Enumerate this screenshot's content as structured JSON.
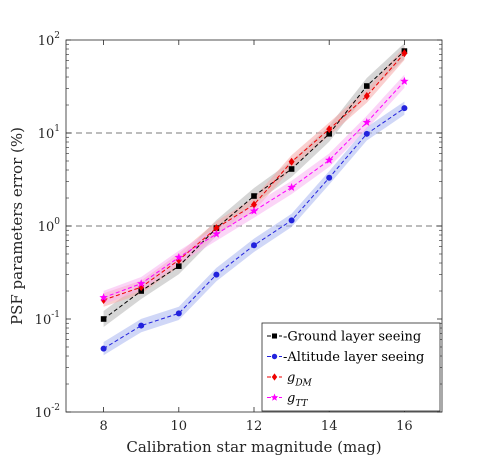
{
  "chart_data": {
    "type": "line",
    "title": "",
    "xlabel": "Calibration star magnitude (mag)",
    "ylabel": "PSF parameters error (%)",
    "x": [
      8,
      9,
      10,
      11,
      12,
      13,
      14,
      15,
      16
    ],
    "xlim": [
      7,
      17
    ],
    "xticks": [
      "8",
      "10",
      "12",
      "14",
      "16"
    ],
    "ylim": [
      0.01,
      100
    ],
    "yscale": "log",
    "yticks": [
      {
        "base": "10",
        "exp": "-2"
      },
      {
        "base": "10",
        "exp": "-1"
      },
      {
        "base": "10",
        "exp": "0"
      },
      {
        "base": "10",
        "exp": "1"
      },
      {
        "base": "10",
        "exp": "2"
      }
    ],
    "grid": "dashed horizontal lines at 10^0 and 10^1",
    "legend_position": "bottom-right",
    "series": [
      {
        "name": "Ground layer seeing",
        "legend_main": "Ground layer seeing",
        "legend_sub": "",
        "prefix": "-",
        "color": "#000000",
        "band_color": "#b4b4b4",
        "marker": "square",
        "values": [
          0.1,
          0.2,
          0.37,
          0.95,
          2.1,
          4.1,
          9.8,
          32,
          76
        ],
        "band_rel": 0.22
      },
      {
        "name": "Altitude layer seeing",
        "legend_main": "Altitude layer seeing",
        "legend_sub": "",
        "prefix": "-",
        "color": "#2222dd",
        "band_color": "#a9b6f1",
        "marker": "circle",
        "values": [
          0.048,
          0.085,
          0.115,
          0.3,
          0.62,
          1.15,
          3.3,
          9.8,
          18.5
        ],
        "band_rel": 0.18
      },
      {
        "name": "g_DM",
        "legend_main": "g",
        "legend_sub": "DM",
        "prefix": "",
        "color": "#ee0000",
        "band_color": "#f6a8a8",
        "marker": "diamond",
        "values": [
          0.16,
          0.22,
          0.43,
          0.95,
          1.7,
          4.9,
          11,
          25,
          72
        ],
        "band_rel": 0.18
      },
      {
        "name": "g_TT",
        "legend_main": "g",
        "legend_sub": "TT",
        "prefix": "",
        "color": "#ff00ff",
        "band_color": "#f7b3f0",
        "marker": "star",
        "values": [
          0.17,
          0.24,
          0.46,
          0.82,
          1.45,
          2.6,
          5.1,
          13,
          36
        ],
        "band_rel": 0.18
      }
    ]
  }
}
